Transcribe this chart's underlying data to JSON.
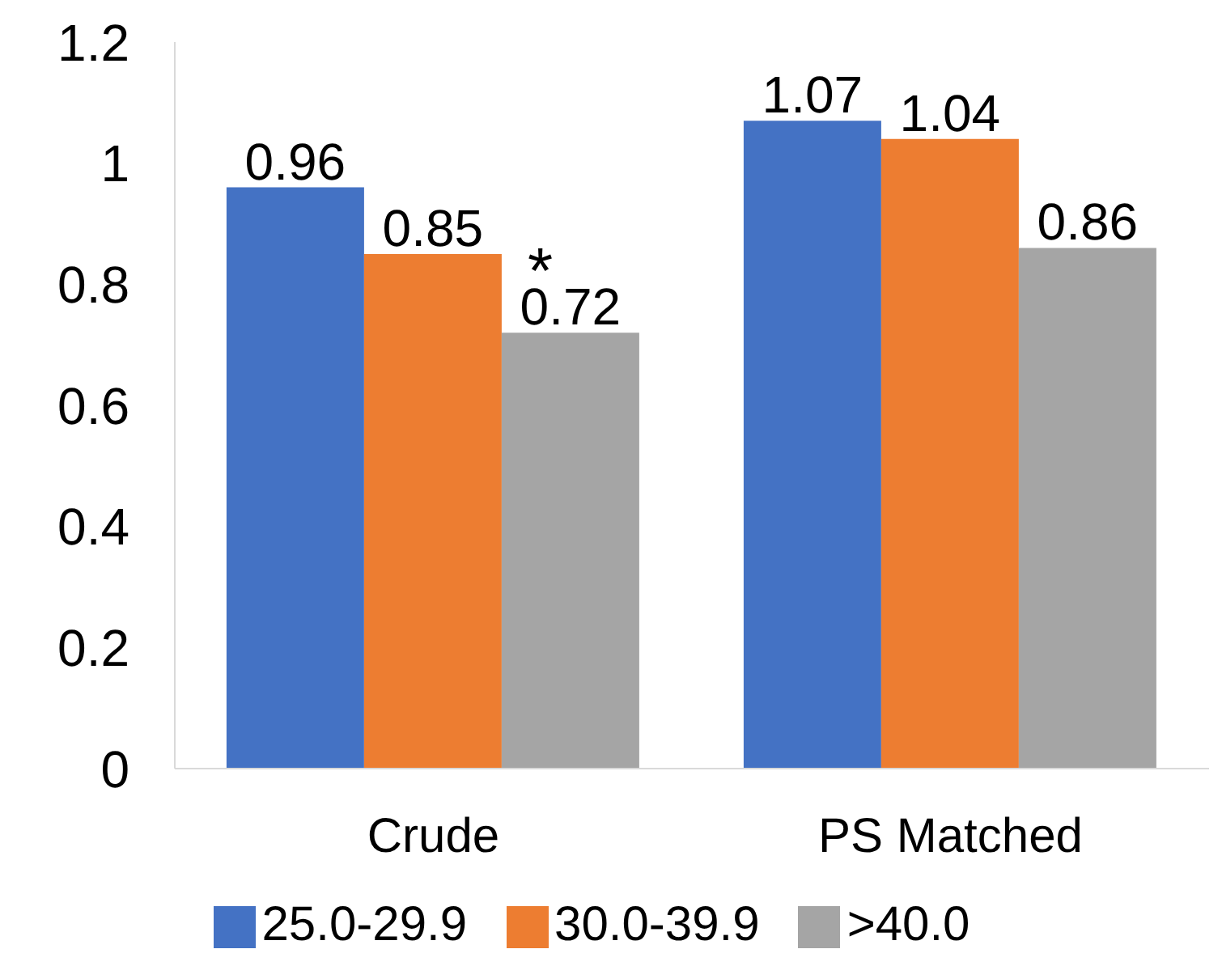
{
  "chart_data": {
    "type": "bar",
    "categories": [
      "Crude",
      "PS Matched"
    ],
    "series": [
      {
        "name": "25.0-29.9",
        "color": "#4472c4",
        "values": [
          0.96,
          1.07
        ]
      },
      {
        "name": "30.0-39.9",
        "color": "#ed7d31",
        "values": [
          0.85,
          1.04
        ]
      },
      {
        "name": ">40.0",
        "color": "#a5a5a5",
        "values": [
          0.72,
          0.86
        ]
      }
    ],
    "ylim": [
      0,
      1.2
    ],
    "yticks": [
      0,
      0.2,
      0.4,
      0.6,
      0.8,
      1,
      1.2
    ],
    "grid": false,
    "legend": "bottom",
    "data_labels": true,
    "annotations": [
      "*"
    ]
  }
}
